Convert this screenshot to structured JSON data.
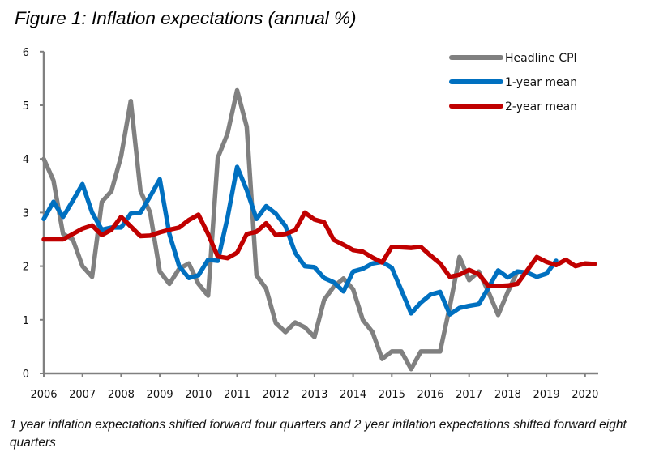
{
  "title": "Figure 1: Inflation expectations (annual %)",
  "note": "1 year inflation expectations shifted forward four quarters and 2 year inflation expectations shifted forward eight quarters",
  "chart_data": {
    "type": "line",
    "title": "Figure 1: Inflation expectations (annual %)",
    "xlabel": "",
    "ylabel": "",
    "xlim": [
      2006,
      2020.45
    ],
    "ylim": [
      0,
      6
    ],
    "yticks": [
      0,
      1,
      2,
      3,
      4,
      5,
      6
    ],
    "xticks": [
      "2006",
      "2007",
      "2008",
      "2009",
      "2010",
      "2011",
      "2012",
      "2013",
      "2014",
      "2015",
      "2016",
      "2017",
      "2018",
      "2019",
      "2020"
    ],
    "grid": false,
    "legend_position": "top-right",
    "x_step": 0.25,
    "series": [
      {
        "name": "Headline CPI",
        "color": "#808080",
        "x_start": 2006.0,
        "values": [
          4.0,
          3.6,
          2.6,
          2.5,
          2.0,
          1.8,
          3.2,
          3.4,
          4.05,
          5.08,
          3.4,
          3.0,
          1.9,
          1.67,
          1.95,
          2.05,
          1.67,
          1.45,
          4.02,
          4.47,
          5.28,
          4.6,
          1.83,
          1.58,
          0.94,
          0.77,
          0.95,
          0.86,
          0.68,
          1.37,
          1.62,
          1.77,
          1.57,
          1.0,
          0.77,
          0.27,
          0.41,
          0.41,
          0.08,
          0.41,
          0.41,
          0.41,
          1.25,
          2.17,
          1.74,
          1.9,
          1.52,
          1.09,
          1.52,
          1.9
        ]
      },
      {
        "name": "1-year mean",
        "color": "#0070C0",
        "x_start": 2006.0,
        "values": [
          2.88,
          3.2,
          2.92,
          3.22,
          3.53,
          3.0,
          2.68,
          2.72,
          2.72,
          2.98,
          3.0,
          3.3,
          3.62,
          2.6,
          2.0,
          1.78,
          1.83,
          2.12,
          2.1,
          2.9,
          3.85,
          3.42,
          2.88,
          3.12,
          2.98,
          2.75,
          2.25,
          2.0,
          1.98,
          1.78,
          1.7,
          1.53,
          1.9,
          1.95,
          2.05,
          2.08,
          1.97,
          1.55,
          1.12,
          1.32,
          1.47,
          1.52,
          1.1,
          1.22,
          1.26,
          1.29,
          1.6,
          1.92,
          1.79,
          1.9,
          1.88,
          1.8,
          1.86,
          2.1
        ]
      },
      {
        "name": "2-year mean",
        "color": "#C00000",
        "x_start": 2006.0,
        "values": [
          2.5,
          2.5,
          2.5,
          2.6,
          2.7,
          2.76,
          2.58,
          2.68,
          2.92,
          2.74,
          2.56,
          2.57,
          2.63,
          2.68,
          2.72,
          2.86,
          2.96,
          2.6,
          2.18,
          2.15,
          2.25,
          2.6,
          2.64,
          2.8,
          2.58,
          2.6,
          2.67,
          3.0,
          2.87,
          2.82,
          2.49,
          2.4,
          2.3,
          2.27,
          2.16,
          2.07,
          2.36,
          2.35,
          2.34,
          2.36,
          2.2,
          2.05,
          1.8,
          1.84,
          1.93,
          1.85,
          1.63,
          1.63,
          1.64,
          1.67,
          1.92,
          2.17,
          2.08,
          2.02,
          2.12,
          2.0,
          2.05,
          2.04
        ]
      }
    ],
    "axis_color": "#808080"
  }
}
